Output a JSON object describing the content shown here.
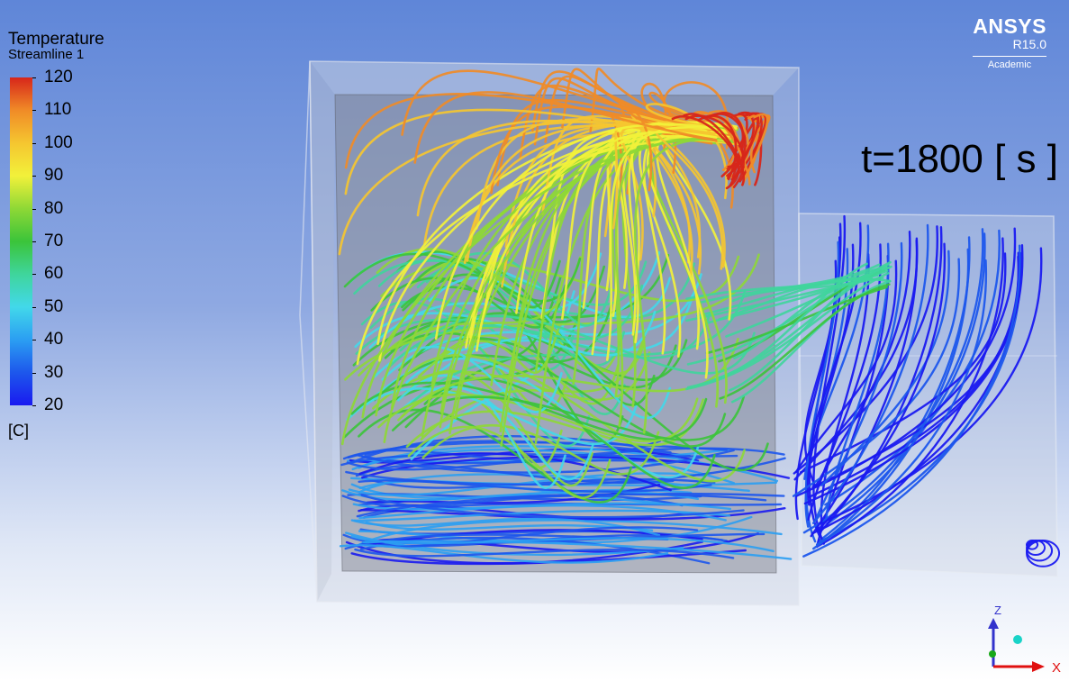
{
  "legend": {
    "variable": "Temperature",
    "object": "Streamline 1",
    "unit": "[C]",
    "ticks": [
      "120",
      "110",
      "100",
      "90",
      "80",
      "70",
      "60",
      "50",
      "40",
      "30",
      "20"
    ],
    "colormap": [
      "#d7261a",
      "#f08b27",
      "#f5c630",
      "#f2f13a",
      "#8ed836",
      "#3bc43a",
      "#3fd59c",
      "#42d8ea",
      "#2b9ef2",
      "#1d57ec",
      "#1a1af0"
    ]
  },
  "brand": {
    "name": "ANSYS",
    "version": "R15.0",
    "edition": "Academic"
  },
  "annotation": {
    "time": "t=1800 [ s ]"
  },
  "axes": {
    "z_label": "Z",
    "x_label": "X"
  },
  "colors": {
    "background_top": "#5f86d8",
    "background_bottom": "#ffffff",
    "hot": "#d7261a",
    "cold": "#1a1af0"
  }
}
